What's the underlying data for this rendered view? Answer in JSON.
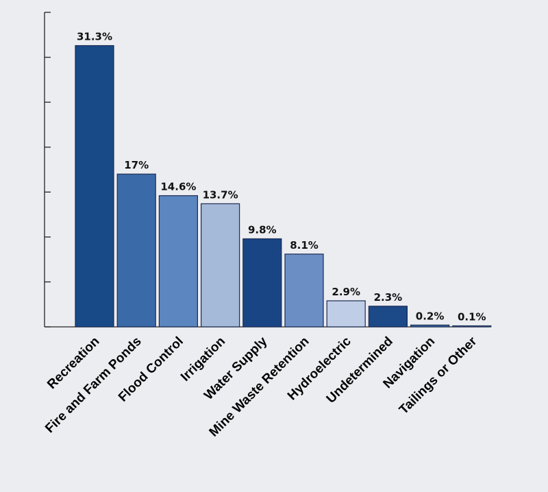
{
  "chart_data": {
    "type": "bar",
    "title": "",
    "xlabel": "",
    "ylabel": "",
    "ylim": [
      0,
      35
    ],
    "grid": false,
    "legend": "none",
    "y_ticks": [
      0,
      5,
      10,
      15,
      20,
      25,
      30,
      35
    ],
    "categories": [
      "Recreation",
      "Fire and Farm Ponds",
      "Flood Control",
      "Irrigation",
      "Water Supply",
      "Mine Waste Retention",
      "Hydroelectric",
      "Undetermined",
      "Navigation",
      "Tailings or Other"
    ],
    "values": [
      31.3,
      17,
      14.6,
      13.7,
      9.8,
      8.1,
      2.9,
      2.3,
      0.2,
      0.1
    ],
    "value_labels": [
      "31.3%",
      "17%",
      "14.6%",
      "13.7%",
      "9.8%",
      "8.1%",
      "2.9%",
      "2.3%",
      "0.2%",
      "0.1%"
    ],
    "bar_colors": [
      "#184a88",
      "#3a6ba8",
      "#5b86bf",
      "#a5b9d9",
      "#1a4585",
      "#6b8fc5",
      "#c0cde6",
      "#1c4987",
      "#3a6ba8",
      "#5b86bf"
    ]
  }
}
